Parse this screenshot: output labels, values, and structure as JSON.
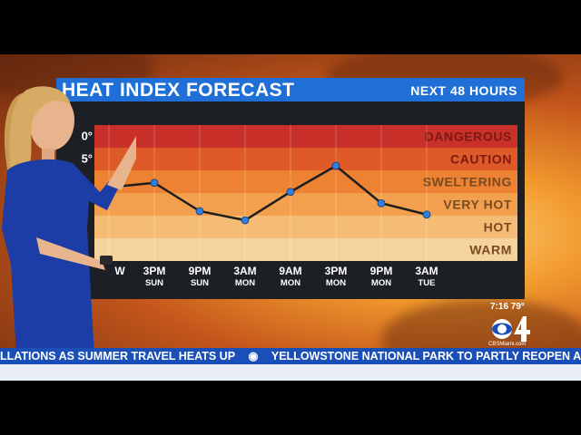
{
  "header": {
    "title": "HEAT INDEX FORECAST",
    "subtitle": "NEXT 48 HOURS"
  },
  "chart_data": {
    "type": "line",
    "title": "HEAT INDEX FORECAST",
    "bands": [
      {
        "label": "DANGEROUS",
        "color": "#c9302a"
      },
      {
        "label": "CAUTION",
        "color": "#de5a28"
      },
      {
        "label": "SWELTERING",
        "color": "#ec8232"
      },
      {
        "label": "VERY HOT",
        "color": "#f2a04e"
      },
      {
        "label": "HOT",
        "color": "#f5bc76"
      },
      {
        "label": "WARM",
        "color": "#f4d49c"
      }
    ],
    "band_axis_partial": [
      "0°",
      "5°"
    ],
    "categories": [
      {
        "time": "W",
        "day": ""
      },
      {
        "time": "3PM",
        "day": "SUN"
      },
      {
        "time": "9PM",
        "day": "SUN"
      },
      {
        "time": "3AM",
        "day": "MON"
      },
      {
        "time": "9AM",
        "day": "MON"
      },
      {
        "time": "3PM",
        "day": "MON"
      },
      {
        "time": "9PM",
        "day": "MON"
      },
      {
        "time": "3AM",
        "day": "TUE"
      }
    ],
    "values": [
      3.25,
      3.45,
      2.2,
      1.8,
      3.05,
      4.2,
      2.55,
      2.05
    ],
    "value_scale": "band index (0 = bottom of WARM, 6 = top of DANGEROUS)",
    "ylim": [
      0,
      6
    ],
    "line_color": "#1e1e1e",
    "marker_color": "#2f7fe0"
  },
  "overlay": {
    "clock": "7:16",
    "temp": "79°",
    "logo_url": "CBSMiami.com"
  },
  "ticker": {
    "items": [
      "LLATIONS AS SUMMER TRAVEL HEATS UP",
      "YELLOWSTONE NATIONAL PARK TO PARTLY REOPEN AFTER"
    ]
  },
  "colors": {
    "title_bar": "#1f6fd6",
    "ticker_bg": "#1a4fb8",
    "panel": "#1c1f24"
  }
}
